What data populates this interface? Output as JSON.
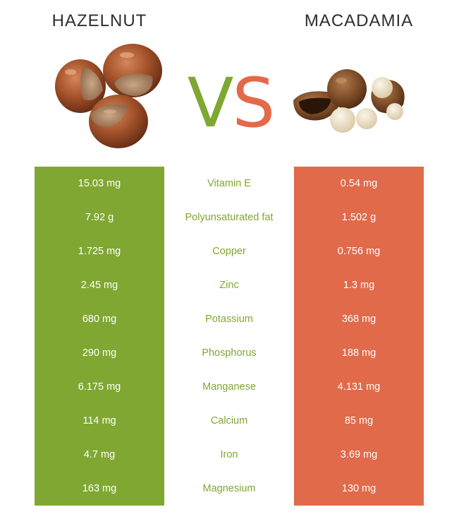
{
  "left": {
    "title": "HAZELNUT",
    "color": "#80a732",
    "values": [
      "15.03 mg",
      "7.92 g",
      "1.725 mg",
      "2.45 mg",
      "680 mg",
      "290 mg",
      "6.175 mg",
      "114 mg",
      "4.7 mg",
      "163 mg"
    ]
  },
  "vs": {
    "v": "V",
    "s": "S"
  },
  "right": {
    "title": "MACADAMIA",
    "color": "#e16a4b",
    "values": [
      "0.54 mg",
      "1.502 g",
      "0.756 mg",
      "1.3 mg",
      "368 mg",
      "188 mg",
      "4.131 mg",
      "85 mg",
      "3.69 mg",
      "130 mg"
    ]
  },
  "nutrients": [
    "Vitamin E",
    "Polyunsaturated fat",
    "Copper",
    "Zinc",
    "Potassium",
    "Phosphorus",
    "Manganese",
    "Calcium",
    "Iron",
    "Magnesium"
  ],
  "icons": {
    "left": "hazelnut-image",
    "right": "macadamia-image"
  }
}
